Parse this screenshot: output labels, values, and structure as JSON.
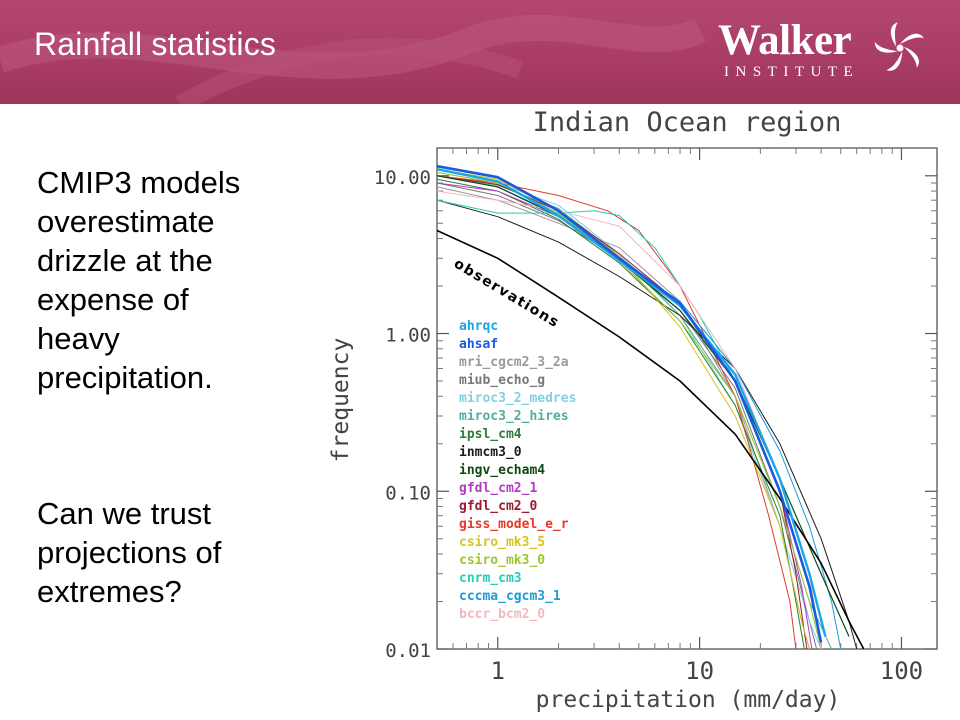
{
  "slide": {
    "title": "Rainfall statistics",
    "logo_name": "Walker",
    "logo_sub": "INSTITUTE",
    "bullet1": [
      "CMIP3 models",
      "overestimate",
      "drizzle at the",
      "expense of",
      "heavy",
      "precipitation."
    ],
    "bullet2": [
      "Can we trust",
      "projections of",
      "extremes?"
    ],
    "colors": {
      "header": "#a93c64",
      "text": "#000000"
    }
  },
  "chart_data": {
    "type": "line",
    "title": "Indian Ocean region",
    "xlabel": "precipitation (mm/day)",
    "ylabel": "frequency",
    "xscale": "log",
    "yscale": "log",
    "xlim": [
      0.5,
      150
    ],
    "ylim": [
      0.01,
      15
    ],
    "x_ticks": [
      1,
      10,
      100
    ],
    "x_tick_labels": [
      "1",
      "10",
      "100"
    ],
    "y_ticks": [
      10,
      1,
      0.1,
      0.01
    ],
    "y_tick_labels": [
      "10.00",
      "1.00",
      "0.10",
      "0.01"
    ],
    "annotation": "observations",
    "legend_position": "middle-left",
    "series": [
      {
        "name": "ahrqc",
        "color": "#17a6e6",
        "width": 2.4,
        "points": [
          [
            0.5,
            11
          ],
          [
            1,
            9.2
          ],
          [
            2,
            5.6
          ],
          [
            4,
            2.9
          ],
          [
            8,
            1.5
          ],
          [
            15,
            0.55
          ],
          [
            25,
            0.12
          ],
          [
            35,
            0.03
          ],
          [
            42,
            0.012
          ]
        ]
      },
      {
        "name": "ahsaf",
        "color": "#1a5ae0",
        "width": 2.6,
        "points": [
          [
            0.5,
            11.5
          ],
          [
            1,
            9.8
          ],
          [
            2,
            6
          ],
          [
            4,
            3
          ],
          [
            8,
            1.55
          ],
          [
            15,
            0.5
          ],
          [
            25,
            0.1
          ],
          [
            35,
            0.025
          ],
          [
            40,
            0.011
          ]
        ]
      },
      {
        "name": "mri_cgcm2_3_2a",
        "color": "#9a9a9a",
        "width": 1,
        "points": [
          [
            0.5,
            8.5
          ],
          [
            1,
            7
          ],
          [
            2,
            5
          ],
          [
            4,
            3.5
          ],
          [
            8,
            1.6
          ],
          [
            15,
            0.4
          ],
          [
            25,
            0.06
          ],
          [
            32,
            0.015
          ],
          [
            35,
            0.01
          ]
        ]
      },
      {
        "name": "miub_echo_g",
        "color": "#777777",
        "width": 1,
        "points": [
          [
            0.5,
            9
          ],
          [
            1,
            7.5
          ],
          [
            2,
            5.2
          ],
          [
            4,
            3
          ],
          [
            8,
            1.4
          ],
          [
            15,
            0.45
          ],
          [
            25,
            0.08
          ],
          [
            33,
            0.02
          ],
          [
            38,
            0.01
          ]
        ]
      },
      {
        "name": "miroc3_2_medres",
        "color": "#7fd1e3",
        "width": 1,
        "points": [
          [
            0.5,
            10.5
          ],
          [
            1,
            9
          ],
          [
            2,
            6.5
          ],
          [
            4,
            3.2
          ],
          [
            8,
            1.3
          ],
          [
            15,
            0.35
          ],
          [
            25,
            0.06
          ],
          [
            35,
            0.015
          ],
          [
            40,
            0.01
          ]
        ]
      },
      {
        "name": "miroc3_2_hires",
        "color": "#4fae9c",
        "width": 1,
        "points": [
          [
            0.5,
            10
          ],
          [
            1,
            8.7
          ],
          [
            2,
            6.2
          ],
          [
            4,
            3.1
          ],
          [
            8,
            1.3
          ],
          [
            15,
            0.4
          ],
          [
            25,
            0.08
          ],
          [
            35,
            0.02
          ],
          [
            45,
            0.01
          ]
        ]
      },
      {
        "name": "ipsl_cm4",
        "color": "#2f7c3a",
        "width": 1,
        "points": [
          [
            0.5,
            9.5
          ],
          [
            1,
            8
          ],
          [
            2,
            5.3
          ],
          [
            4,
            2.8
          ],
          [
            8,
            1.2
          ],
          [
            15,
            0.35
          ],
          [
            25,
            0.07
          ],
          [
            30,
            0.02
          ],
          [
            33,
            0.01
          ]
        ]
      },
      {
        "name": "inmcm3_0",
        "color": "#1c1c1c",
        "width": 1,
        "points": [
          [
            0.5,
            7
          ],
          [
            1,
            5.5
          ],
          [
            2,
            3.8
          ],
          [
            4,
            2.3
          ],
          [
            8,
            1.3
          ],
          [
            15,
            0.6
          ],
          [
            25,
            0.2
          ],
          [
            40,
            0.05
          ],
          [
            55,
            0.015
          ],
          [
            60,
            0.01
          ]
        ]
      },
      {
        "name": "ingv_echam4",
        "color": "#0e4a14",
        "width": 1.2,
        "points": [
          [
            0.5,
            10
          ],
          [
            1,
            8.5
          ],
          [
            2,
            5.6
          ],
          [
            4,
            2.9
          ],
          [
            8,
            1.4
          ],
          [
            15,
            0.5
          ],
          [
            25,
            0.12
          ],
          [
            40,
            0.03
          ],
          [
            55,
            0.012
          ]
        ]
      },
      {
        "name": "gfdl_cm2_1",
        "color": "#b43cc4",
        "width": 1,
        "points": [
          [
            0.5,
            9
          ],
          [
            1,
            8
          ],
          [
            2,
            5.5
          ],
          [
            4,
            3
          ],
          [
            8,
            1.5
          ],
          [
            15,
            0.5
          ],
          [
            25,
            0.1
          ],
          [
            32,
            0.025
          ],
          [
            36,
            0.01
          ]
        ]
      },
      {
        "name": "gfdl_cm2_0",
        "color": "#9c1a2e",
        "width": 1,
        "points": [
          [
            0.5,
            10
          ],
          [
            1,
            8.8
          ],
          [
            2,
            6
          ],
          [
            4,
            3.2
          ],
          [
            8,
            1.55
          ],
          [
            15,
            0.5
          ],
          [
            25,
            0.1
          ],
          [
            30,
            0.03
          ],
          [
            34,
            0.01
          ]
        ]
      },
      {
        "name": "giss_model_e_r",
        "color": "#e23a2a",
        "width": 1,
        "points": [
          [
            0.5,
            10
          ],
          [
            1,
            9
          ],
          [
            2,
            7.5
          ],
          [
            3.5,
            6
          ],
          [
            5,
            4.5
          ],
          [
            8,
            2
          ],
          [
            15,
            0.4
          ],
          [
            22,
            0.07
          ],
          [
            28,
            0.02
          ],
          [
            30,
            0.01
          ]
        ]
      },
      {
        "name": "csiro_mk3_5",
        "color": "#d8c41a",
        "width": 1,
        "points": [
          [
            0.5,
            11
          ],
          [
            1,
            9.5
          ],
          [
            2,
            6
          ],
          [
            4,
            3.1
          ],
          [
            8,
            1.1
          ],
          [
            15,
            0.3
          ],
          [
            25,
            0.06
          ],
          [
            32,
            0.015
          ],
          [
            35,
            0.01
          ]
        ]
      },
      {
        "name": "csiro_mk3_0",
        "color": "#9bc82a",
        "width": 1,
        "points": [
          [
            0.5,
            10.5
          ],
          [
            1,
            9
          ],
          [
            2,
            5.8
          ],
          [
            4,
            2.9
          ],
          [
            8,
            1.2
          ],
          [
            15,
            0.4
          ],
          [
            25,
            0.08
          ],
          [
            35,
            0.02
          ],
          [
            40,
            0.01
          ]
        ]
      },
      {
        "name": "cnrm_cm3",
        "color": "#20d0b8",
        "width": 1,
        "points": [
          [
            0.5,
            7
          ],
          [
            1,
            5.8
          ],
          [
            2,
            5.8
          ],
          [
            3,
            6
          ],
          [
            4,
            5.6
          ],
          [
            6,
            3.5
          ],
          [
            10,
            1.3
          ],
          [
            15,
            0.5
          ],
          [
            25,
            0.1
          ],
          [
            35,
            0.025
          ],
          [
            40,
            0.01
          ]
        ]
      },
      {
        "name": "cccma_cgcm3_1",
        "color": "#1e9ad8",
        "width": 1,
        "points": [
          [
            0.5,
            10
          ],
          [
            1,
            8.5
          ],
          [
            2,
            5.5
          ],
          [
            4,
            2.9
          ],
          [
            8,
            1.6
          ],
          [
            15,
            0.6
          ],
          [
            25,
            0.18
          ],
          [
            35,
            0.06
          ],
          [
            45,
            0.02
          ],
          [
            50,
            0.01
          ]
        ]
      },
      {
        "name": "bccr_bcm2_0",
        "color": "#f2b8c0",
        "width": 1,
        "points": [
          [
            0.5,
            8
          ],
          [
            1,
            7
          ],
          [
            2,
            6
          ],
          [
            4,
            4.8
          ],
          [
            8,
            2
          ],
          [
            15,
            0.6
          ],
          [
            25,
            0.12
          ],
          [
            35,
            0.03
          ],
          [
            40,
            0.01
          ]
        ]
      },
      {
        "name": "observations",
        "color": "#000000",
        "width": 1.6,
        "points": [
          [
            0.5,
            4.5
          ],
          [
            1,
            3
          ],
          [
            2,
            1.7
          ],
          [
            4,
            0.95
          ],
          [
            8,
            0.5
          ],
          [
            15,
            0.23
          ],
          [
            25,
            0.09
          ],
          [
            40,
            0.035
          ],
          [
            55,
            0.015
          ],
          [
            65,
            0.01
          ]
        ]
      }
    ]
  }
}
